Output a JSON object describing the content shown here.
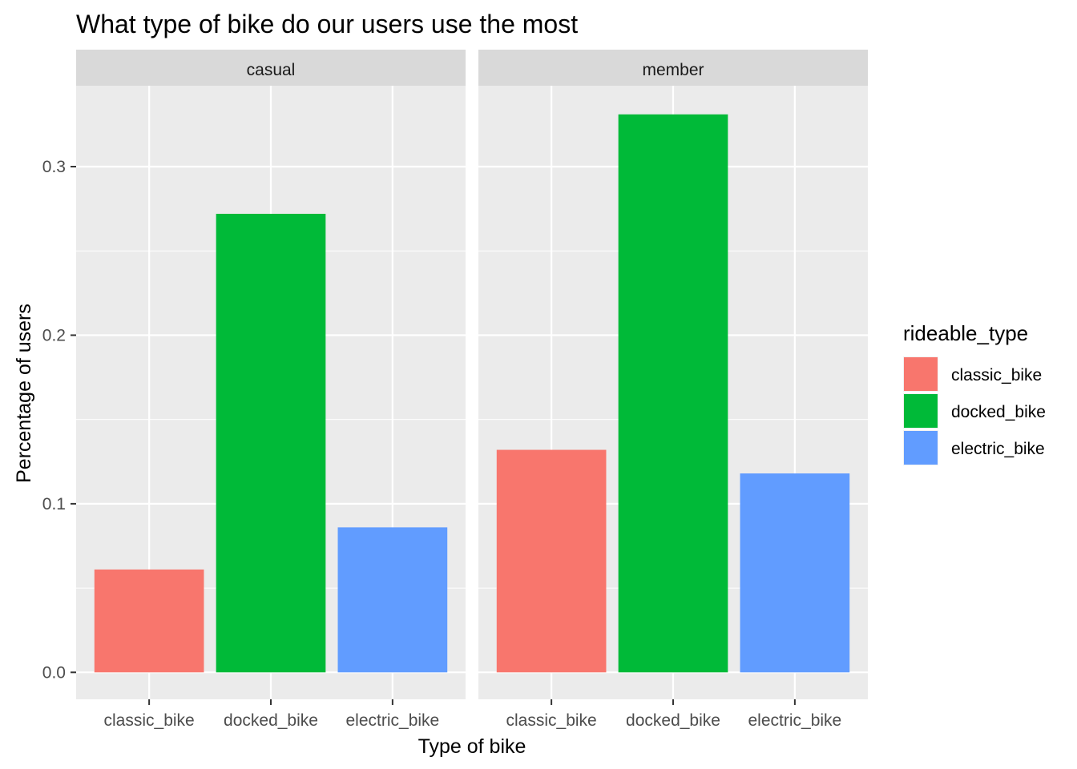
{
  "chart_data": {
    "type": "bar",
    "title": "What type of bike do our users use the most",
    "xlabel": "Type of bike",
    "ylabel": "Percentage of users",
    "facets": [
      "casual",
      "member"
    ],
    "categories": [
      "classic_bike",
      "docked_bike",
      "electric_bike"
    ],
    "series": [
      {
        "facet": "casual",
        "values": [
          0.061,
          0.272,
          0.086
        ]
      },
      {
        "facet": "member",
        "values": [
          0.132,
          0.331,
          0.118
        ]
      }
    ],
    "ylim": [
      -0.016,
      0.348
    ],
    "yticks": [
      0.0,
      0.1,
      0.2,
      0.3
    ],
    "ytick_labels": [
      "0.0",
      "0.1",
      "0.2",
      "0.3"
    ],
    "grid": true,
    "legend": {
      "title": "rideable_type",
      "placement": "right",
      "items": [
        {
          "label": "classic_bike",
          "color": "#F8766D"
        },
        {
          "label": "docked_bike",
          "color": "#00BA38"
        },
        {
          "label": "electric_bike",
          "color": "#619CFF"
        }
      ]
    },
    "colors": {
      "panel_background": "#EBEBEB",
      "strip_background": "#D9D9D9",
      "grid": "#FFFFFF"
    }
  }
}
